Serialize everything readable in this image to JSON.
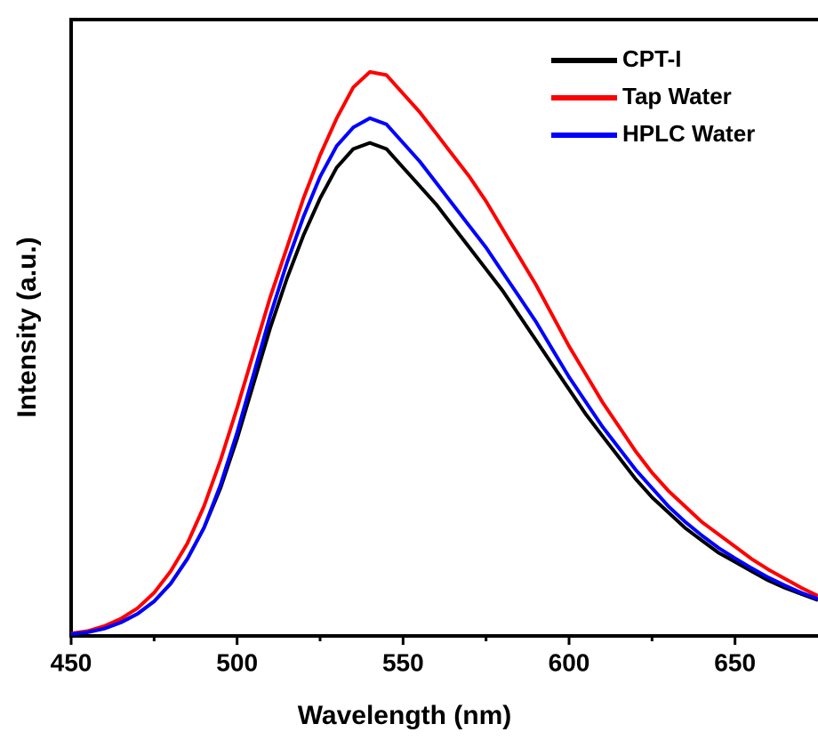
{
  "chart_data": {
    "type": "line",
    "x_label": "Wavelength (nm)",
    "y_label": "Intensity (a.u.)",
    "x": [
      450,
      455,
      460,
      465,
      470,
      475,
      480,
      485,
      490,
      495,
      500,
      505,
      510,
      515,
      520,
      525,
      530,
      535,
      540,
      545,
      550,
      555,
      560,
      565,
      570,
      575,
      580,
      585,
      590,
      595,
      600,
      605,
      610,
      615,
      620,
      625,
      630,
      635,
      640,
      645,
      650,
      655,
      660,
      665,
      670,
      675
    ],
    "series": [
      {
        "name": "CPT-I",
        "color": "#000000",
        "values": [
          0.3,
          0.6,
          1.2,
          2.2,
          3.6,
          5.6,
          8.5,
          12.5,
          17.5,
          24,
          32,
          41,
          50,
          58,
          65,
          71,
          76,
          79,
          80,
          79,
          76,
          73,
          70,
          66.5,
          63,
          59.5,
          56,
          52,
          48,
          44,
          40,
          36,
          32.5,
          29,
          25.5,
          22.5,
          20,
          17.5,
          15.5,
          13.5,
          12,
          10.5,
          9,
          7.8,
          6.8,
          5.8
        ]
      },
      {
        "name": "Tap Water",
        "color": "#ff0000",
        "values": [
          0.4,
          0.8,
          1.6,
          2.8,
          4.5,
          7,
          10.5,
          15,
          21,
          28.5,
          37,
          46,
          55,
          63,
          71,
          78,
          84,
          89,
          91.5,
          91,
          88,
          85,
          81.5,
          78,
          74.5,
          70.5,
          66,
          61.5,
          57,
          52,
          47,
          42.5,
          38,
          34,
          30,
          26.5,
          23.5,
          21,
          18.5,
          16.5,
          14.5,
          12.5,
          10.8,
          9.3,
          7.8,
          6.5
        ]
      },
      {
        "name": "HPLC Water",
        "color": "#0000ff",
        "values": [
          0.3,
          0.6,
          1.2,
          2.2,
          3.6,
          5.6,
          8.5,
          12.5,
          17.5,
          24.5,
          33,
          42.5,
          52,
          60.5,
          68,
          74.5,
          79.5,
          82.5,
          84,
          83,
          80,
          77,
          73.5,
          70,
          66.5,
          63,
          59,
          55,
          51,
          46.5,
          42,
          38,
          34,
          30.5,
          27,
          24,
          21,
          18.5,
          16.3,
          14.3,
          12.6,
          11,
          9.5,
          8.2,
          7,
          6
        ]
      }
    ],
    "xlim": [
      450,
      675
    ],
    "xticks": [
      450,
      500,
      550,
      600,
      650
    ],
    "xminor_ticks": [
      475,
      525,
      575,
      625
    ],
    "ylim": [
      0,
      100
    ],
    "legend": "upper right"
  }
}
